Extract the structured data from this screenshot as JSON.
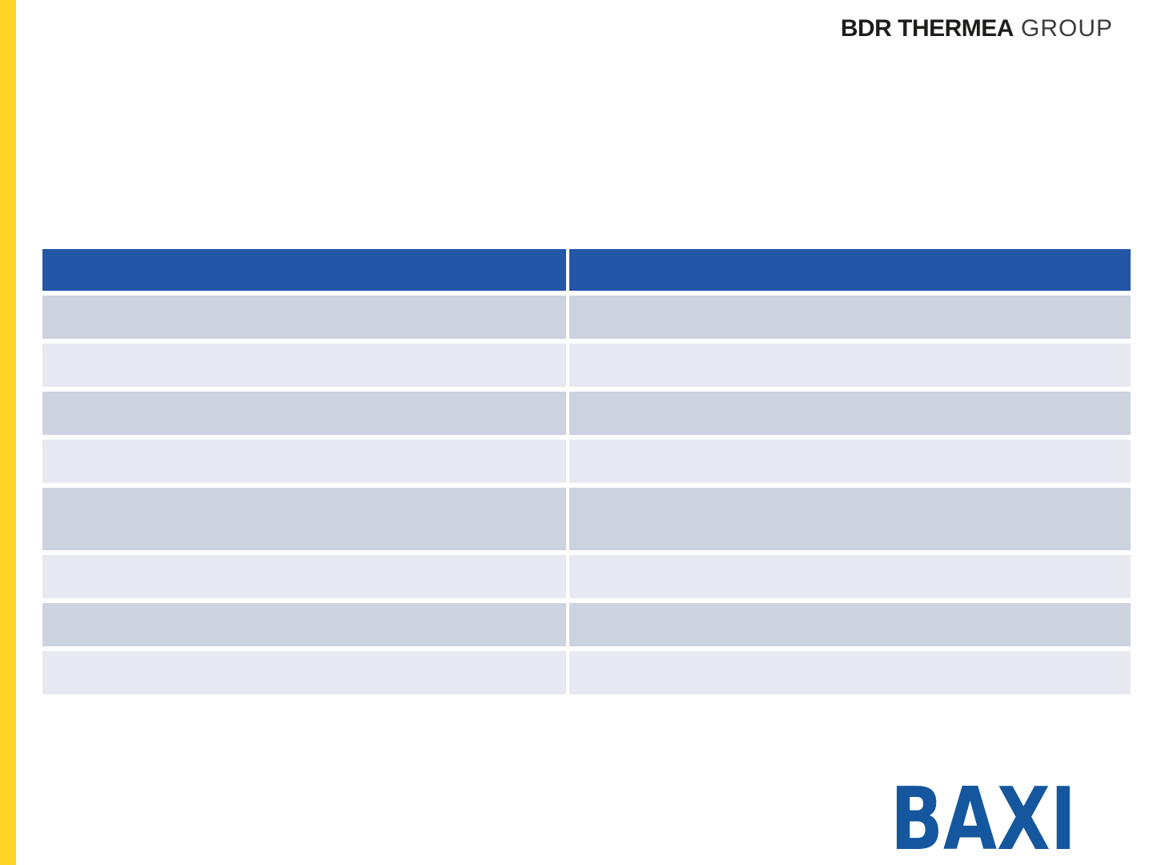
{
  "colors": {
    "accent_yellow": "#FFD226",
    "table_header_blue": "#2456A8",
    "table_row_dark": "#CDD2DF",
    "table_row_light": "#E7E8F0",
    "baxi_blue": "#15579E",
    "logo_text_dark": "#1D1D1B",
    "logo_text_light": "#3C3C3B",
    "divider_white": "#FFFFFF"
  },
  "header_logo": {
    "bold_text": "BDR THERMEA",
    "light_text": "GROUP"
  },
  "table": {
    "header": {
      "columns": [
        "",
        ""
      ]
    },
    "rows": [
      {
        "cells": [
          "",
          ""
        ]
      },
      {
        "cells": [
          "",
          ""
        ]
      },
      {
        "cells": [
          "",
          ""
        ]
      },
      {
        "cells": [
          "",
          ""
        ]
      },
      {
        "cells": [
          "",
          ""
        ],
        "tall": true
      },
      {
        "cells": [
          "",
          ""
        ]
      },
      {
        "cells": [
          "",
          ""
        ]
      },
      {
        "cells": [
          "",
          ""
        ]
      }
    ]
  },
  "footer_logo": {
    "text": "BAXI"
  }
}
